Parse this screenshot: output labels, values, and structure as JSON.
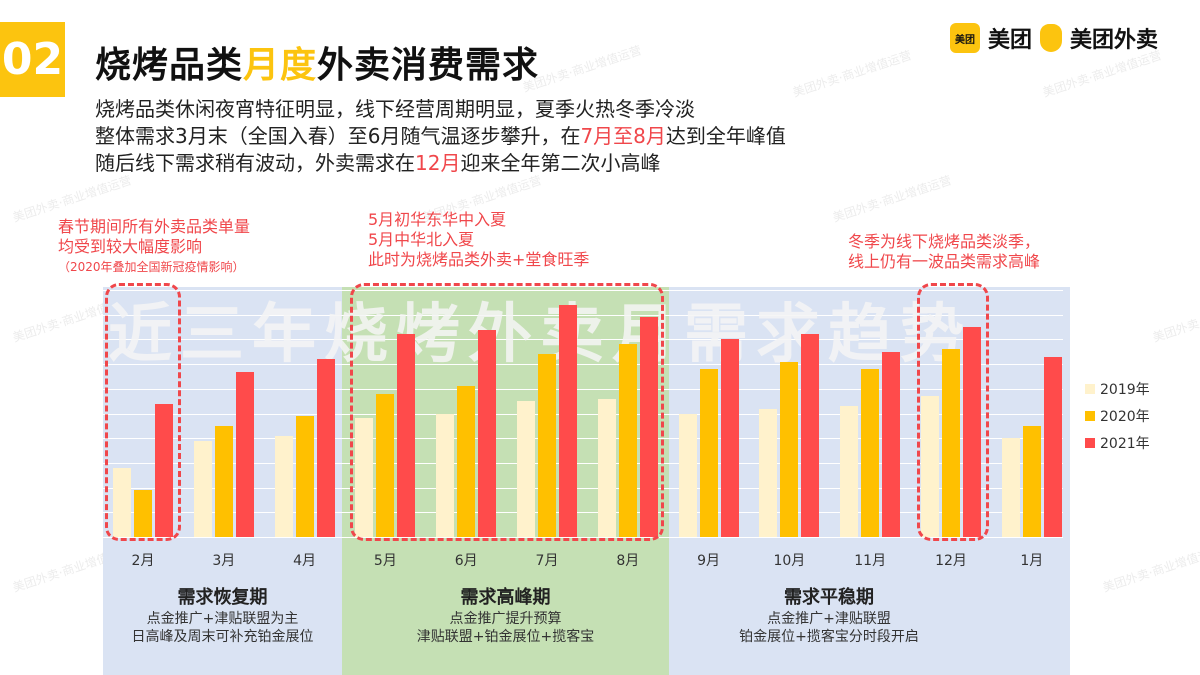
{
  "header": {
    "badge": "02",
    "title_a": "烧烤品类",
    "title_hl": "月度",
    "title_b": "外卖消费需求",
    "lines": [
      {
        "a": "烧烤品类休闲夜宵特征明显，线下经营周期明显，夏季火热冬季冷淡"
      },
      {
        "a": "整体需求3月末（全国入春）至6月随气温逐步攀升，在",
        "r": "7月至8月",
        "b": "达到全年峰值"
      },
      {
        "a": "随后线下需求稍有波动，外卖需求在",
        "r": "12月",
        "b": "迎来全年第二次小高峰"
      }
    ]
  },
  "logos": {
    "meituan_icon": "美团",
    "meituan": "美团",
    "waimai": "美团外卖"
  },
  "watermark": "美团外卖·商业增值运营",
  "annotations": {
    "left": [
      "春节期间所有外卖品类单量",
      "均受到较大幅度影响"
    ],
    "left_note": "（2020年叠加全国新冠疫情影响）",
    "middle": [
      "5月初华东华中入夏",
      "5月中华北入夏",
      "此时为烧烤品类外卖+堂食旺季"
    ],
    "right": [
      "冬季为线下烧烤品类淡季，",
      "线上仍有一波品类需求高峰"
    ]
  },
  "phases": [
    {
      "title": "需求恢复期",
      "lines": [
        "点金推广+津贴联盟为主",
        "日高峰及周末可补充铂金展位"
      ],
      "color": "#dae3f3"
    },
    {
      "title": "需求高峰期",
      "lines": [
        "点金推广提升预算",
        "津贴联盟+铂金展位+揽客宝"
      ],
      "color": "#c5e0b4"
    },
    {
      "title": "需求平稳期",
      "lines": [
        "点金推广+津贴联盟",
        "铂金展位+揽客宝分时段开启"
      ],
      "color": "#dae3f3"
    }
  ],
  "chart_data": {
    "type": "bar",
    "title": "近三年烧烤外卖月需求趋势",
    "categories": [
      "2月",
      "3月",
      "4月",
      "5月",
      "6月",
      "7月",
      "8月",
      "9月",
      "10月",
      "11月",
      "12月",
      "1月"
    ],
    "series": [
      {
        "name": "2019年",
        "color": "#fff2cc",
        "values": [
          2.8,
          3.9,
          4.1,
          4.8,
          5.0,
          5.5,
          5.6,
          5.0,
          5.2,
          5.3,
          5.7,
          4.0
        ]
      },
      {
        "name": "2020年",
        "color": "#ffc000",
        "values": [
          1.9,
          4.5,
          4.9,
          5.8,
          6.1,
          7.4,
          7.8,
          6.8,
          7.1,
          6.8,
          7.6,
          4.5
        ]
      },
      {
        "name": "2021年",
        "color": "#ff4b4b",
        "values": [
          5.4,
          6.7,
          7.2,
          8.2,
          8.4,
          9.4,
          8.9,
          8.0,
          8.2,
          7.5,
          8.5,
          7.3
        ]
      }
    ],
    "ylim": [
      0,
      10
    ],
    "grid": true,
    "legend": "right",
    "xlabel": "",
    "ylabel": ""
  }
}
